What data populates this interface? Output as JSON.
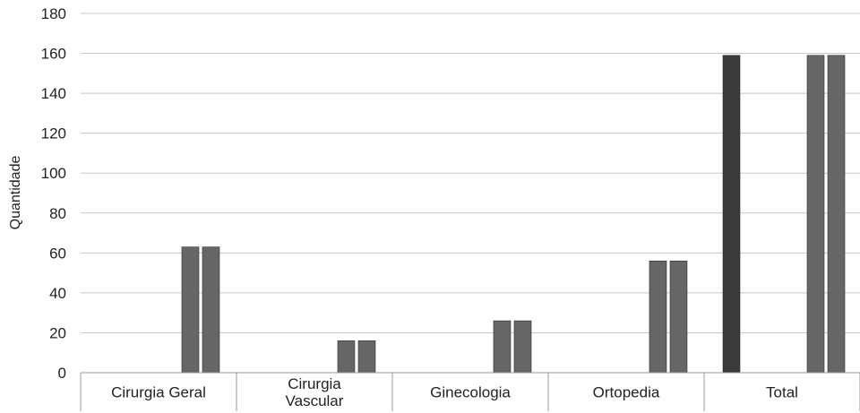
{
  "chart_data": {
    "type": "bar",
    "title": "",
    "xlabel": "",
    "ylabel": "Quantidade",
    "ylim": [
      0,
      180
    ],
    "yticks": [
      0,
      20,
      40,
      60,
      80,
      100,
      120,
      140,
      160,
      180
    ],
    "categories": [
      [
        "Cirurgia Geral"
      ],
      [
        "Cirurgia",
        "Vascular"
      ],
      [
        "Ginecologia"
      ],
      [
        "Ortopedia"
      ],
      [
        "Total"
      ]
    ],
    "series": [
      {
        "values": [
          0,
          0,
          0,
          0,
          159
        ]
      },
      {
        "values": [
          63,
          16,
          26,
          56,
          159
        ]
      },
      {
        "values": [
          63,
          16,
          26,
          56,
          159
        ]
      }
    ],
    "grid": true,
    "legend": "none",
    "colors": {
      "series": [
        "#3a3a3a",
        "#666666",
        "#666666"
      ],
      "grid": "#c8c8c8",
      "axis": "#9a9a9a"
    }
  }
}
